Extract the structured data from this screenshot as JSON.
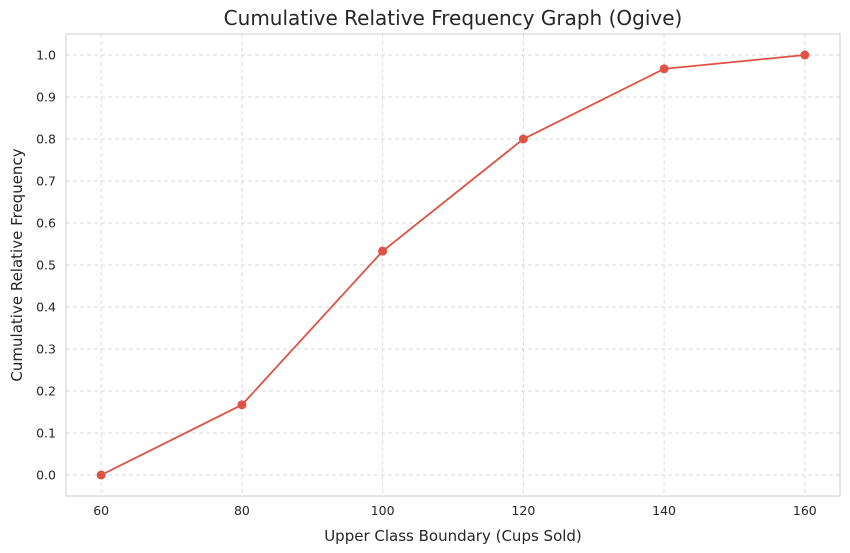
{
  "chart_data": {
    "type": "line",
    "title": "Cumulative Relative Frequency Graph (Ogive)",
    "xlabel": "Upper Class Boundary (Cups Sold)",
    "ylabel": "Cumulative Relative Frequency",
    "x": [
      60,
      80,
      100,
      120,
      140,
      160
    ],
    "series": [
      {
        "values": [
          0.0,
          0.167,
          0.533,
          0.8,
          0.967,
          1.0
        ]
      }
    ],
    "xlim": [
      55,
      165
    ],
    "ylim": [
      -0.05,
      1.05
    ],
    "xticks": [
      "60",
      "80",
      "100",
      "120",
      "140",
      "160"
    ],
    "yticks": [
      "0.0",
      "0.1",
      "0.2",
      "0.3",
      "0.4",
      "0.5",
      "0.6",
      "0.7",
      "0.8",
      "0.9",
      "1.0"
    ],
    "grid": true,
    "line_color": "#e05244"
  }
}
